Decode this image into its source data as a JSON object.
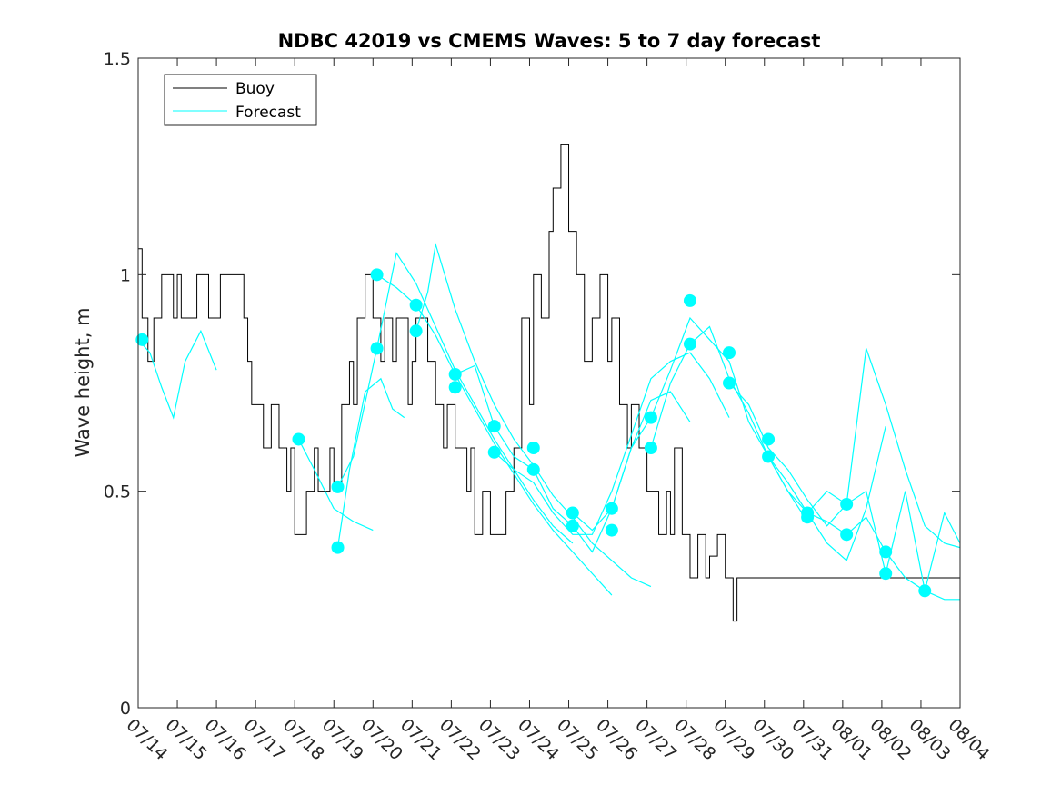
{
  "chart_data": {
    "type": "line",
    "title": "NDBC 42019 vs CMEMS Waves: 5 to 7 day forecast",
    "xlabel": "",
    "ylabel": "Wave height, m",
    "ylim": [
      0,
      1.5
    ],
    "yticks": [
      0,
      0.5,
      1,
      1.5
    ],
    "ytick_labels": [
      "0",
      "0.5",
      "1",
      "1.5"
    ],
    "xlim": [
      0,
      21
    ],
    "xticks": [
      0,
      1,
      2,
      3,
      4,
      5,
      6,
      7,
      8,
      9,
      10,
      11,
      12,
      13,
      14,
      15,
      16,
      17,
      18,
      19,
      20,
      21
    ],
    "xtick_labels": [
      "07/14",
      "07/15",
      "07/16",
      "07/17",
      "07/18",
      "07/19",
      "07/20",
      "07/21",
      "07/22",
      "07/23",
      "07/24",
      "07/25",
      "07/26",
      "07/27",
      "07/28",
      "07/29",
      "07/30",
      "07/31",
      "08/01",
      "08/02",
      "08/03",
      "08/04"
    ],
    "legend_position": "top-left",
    "colors": {
      "buoy": "#000000",
      "forecast": "#00ffff"
    },
    "series": [
      {
        "name": "Buoy",
        "style": "step",
        "x": [
          0.0,
          0.1,
          0.25,
          0.4,
          0.6,
          0.9,
          1.0,
          1.1,
          1.5,
          1.8,
          2.1,
          2.7,
          2.8,
          2.9,
          3.2,
          3.4,
          3.6,
          3.8,
          3.9,
          4.0,
          4.3,
          4.5,
          4.6,
          4.9,
          5.0,
          5.2,
          5.4,
          5.5,
          5.6,
          5.8,
          6.0,
          6.2,
          6.3,
          6.5,
          6.6,
          6.9,
          7.0,
          7.1,
          7.4,
          7.6,
          7.8,
          7.9,
          8.1,
          8.4,
          8.5,
          8.6,
          8.8,
          9.0,
          9.4,
          9.6,
          9.8,
          10.0,
          10.1,
          10.3,
          10.5,
          10.6,
          10.8,
          11.0,
          11.2,
          11.4,
          11.6,
          11.8,
          12.0,
          12.1,
          12.3,
          12.5,
          12.6,
          12.8,
          13.0,
          13.3,
          13.5,
          13.6,
          13.7,
          13.9,
          14.1,
          14.3,
          14.5,
          14.6,
          14.8,
          15.0,
          15.2,
          15.3,
          15.5,
          15.6,
          15.8,
          16.0,
          16.2,
          16.4,
          16.6,
          16.8,
          17.0,
          17.2,
          17.4,
          17.6,
          17.8,
          18.0,
          18.2,
          18.3,
          18.5,
          18.6,
          18.8,
          19.0,
          19.2,
          19.4,
          19.6,
          19.8,
          20.0,
          20.1,
          20.2,
          20.4,
          20.6,
          20.8,
          21.0
        ],
        "y": [
          1.06,
          0.9,
          0.8,
          0.9,
          1.0,
          0.9,
          1.0,
          0.9,
          1.0,
          0.9,
          1.0,
          0.9,
          0.8,
          0.7,
          0.6,
          0.7,
          0.6,
          0.5,
          0.6,
          0.4,
          0.5,
          0.6,
          0.5,
          0.6,
          0.5,
          0.7,
          0.8,
          0.7,
          0.9,
          1.0,
          0.9,
          0.8,
          0.9,
          0.8,
          0.9,
          0.7,
          0.8,
          0.9,
          0.8,
          0.7,
          0.6,
          0.7,
          0.6,
          0.5,
          0.6,
          0.4,
          0.5,
          0.4,
          0.5,
          0.6,
          0.9,
          0.7,
          1.0,
          0.9,
          1.1,
          1.2,
          1.3,
          1.1,
          1.0,
          0.8,
          0.9,
          1.0,
          0.8,
          0.9,
          0.7,
          0.6,
          0.7,
          0.6,
          0.5,
          0.4,
          0.5,
          0.4,
          0.6,
          0.4,
          0.3,
          0.4,
          0.3,
          0.35,
          0.4,
          0.3,
          0.2,
          0.3,
          0.3,
          0.3,
          0.3,
          0.3,
          0.3,
          0.3,
          0.3,
          0.3,
          0.3,
          0.3,
          0.3,
          0.3,
          0.3,
          0.3,
          0.3,
          0.3,
          0.3,
          0.3,
          0.3,
          0.3,
          0.3,
          0.3,
          0.3,
          0.3,
          0.3,
          0.3,
          0.3,
          0.3,
          0.3,
          0.3,
          0.3
        ]
      },
      {
        "name": "Forecast",
        "style": "line",
        "segments": [
          {
            "x": [
              0.0,
              0.3,
              0.6,
              0.9,
              1.2,
              1.6,
              2.0
            ],
            "y": [
              0.85,
              0.82,
              0.74,
              0.67,
              0.8,
              0.87,
              0.78
            ]
          },
          {
            "x": [
              4.1,
              4.5,
              5.0,
              5.5,
              6.0
            ],
            "y": [
              0.62,
              0.55,
              0.46,
              0.43,
              0.41
            ]
          },
          {
            "x": [
              5.1,
              5.4,
              5.8,
              6.2,
              6.5,
              6.8
            ],
            "y": [
              0.37,
              0.55,
              0.73,
              0.76,
              0.69,
              0.67
            ]
          },
          {
            "x": [
              5.1,
              5.5,
              6.1,
              6.6,
              7.1,
              7.6,
              8.1,
              8.6,
              9.1,
              9.6,
              10.1,
              10.6,
              11.1
            ],
            "y": [
              0.51,
              0.58,
              0.83,
              1.05,
              0.98,
              0.88,
              0.78,
              0.7,
              0.62,
              0.55,
              0.48,
              0.42,
              0.38
            ]
          },
          {
            "x": [
              6.1,
              6.6,
              7.1,
              7.6,
              8.1,
              8.6,
              9.1,
              9.6,
              10.1,
              10.6,
              11.1,
              11.6,
              12.1
            ],
            "y": [
              1.0,
              0.97,
              0.93,
              0.86,
              0.77,
              0.69,
              0.61,
              0.54,
              0.47,
              0.41,
              0.36,
              0.31,
              0.26
            ]
          },
          {
            "x": [
              7.1,
              7.4,
              7.6,
              8.1,
              8.6,
              9.1,
              9.6,
              10.1,
              10.6,
              11.1,
              11.6,
              12.1,
              12.6,
              13.1
            ],
            "y": [
              0.87,
              0.96,
              1.07,
              0.92,
              0.8,
              0.7,
              0.62,
              0.56,
              0.49,
              0.44,
              0.38,
              0.34,
              0.3,
              0.28
            ]
          },
          {
            "x": [
              8.1,
              8.6,
              9.1,
              9.6,
              10.1,
              10.6,
              11.1,
              11.6,
              12.1,
              12.6,
              13.1,
              13.6,
              14.1
            ],
            "y": [
              0.77,
              0.79,
              0.65,
              0.58,
              0.55,
              0.46,
              0.42,
              0.36,
              0.46,
              0.6,
              0.71,
              0.73,
              0.66
            ]
          },
          {
            "x": [
              9.1,
              9.6,
              10.1,
              10.6,
              11.1,
              11.6,
              12.1,
              12.6,
              13.1,
              13.6,
              14.1,
              14.6,
              15.1
            ],
            "y": [
              0.59,
              0.55,
              0.52,
              0.45,
              0.4,
              0.4,
              0.5,
              0.63,
              0.76,
              0.8,
              0.82,
              0.76,
              0.67
            ]
          },
          {
            "x": [
              11.1,
              11.6,
              12.1,
              12.6,
              13.1,
              13.6,
              14.1,
              14.6,
              15.1,
              15.6,
              16.1,
              16.6,
              17.1
            ],
            "y": [
              0.45,
              0.41,
              0.46,
              0.6,
              0.67,
              0.78,
              0.9,
              0.85,
              0.8,
              0.66,
              0.58,
              0.5,
              0.43
            ]
          },
          {
            "x": [
              13.1,
              13.6,
              14.1,
              14.6,
              15.1,
              15.6,
              16.1,
              16.6,
              17.1,
              17.6,
              18.1,
              18.6,
              19.1
            ],
            "y": [
              0.6,
              0.75,
              0.84,
              0.88,
              0.76,
              0.68,
              0.58,
              0.52,
              0.45,
              0.38,
              0.34,
              0.46,
              0.65
            ]
          },
          {
            "x": [
              15.1,
              15.6,
              16.1,
              16.6,
              17.1,
              17.6,
              18.1,
              18.6,
              19.1,
              19.6,
              20.1,
              20.6,
              21.0
            ],
            "y": [
              0.75,
              0.7,
              0.6,
              0.55,
              0.48,
              0.42,
              0.47,
              0.83,
              0.7,
              0.55,
              0.42,
              0.38,
              0.37
            ]
          },
          {
            "x": [
              16.1,
              16.6,
              17.1,
              17.6,
              18.1,
              18.6,
              19.1,
              19.6,
              20.1,
              20.6,
              21.0
            ],
            "y": [
              0.58,
              0.5,
              0.45,
              0.43,
              0.4,
              0.44,
              0.36,
              0.3,
              0.27,
              0.25,
              0.25
            ]
          },
          {
            "x": [
              17.1,
              17.6,
              18.1,
              18.6,
              19.1,
              19.6,
              20.1,
              20.6,
              21.0
            ],
            "y": [
              0.45,
              0.5,
              0.47,
              0.5,
              0.31,
              0.5,
              0.27,
              0.45,
              0.38
            ]
          }
        ],
        "markers": [
          {
            "x": 0.1,
            "y": 0.85
          },
          {
            "x": 4.1,
            "y": 0.62
          },
          {
            "x": 5.1,
            "y": 0.51
          },
          {
            "x": 5.1,
            "y": 0.37
          },
          {
            "x": 6.1,
            "y": 1.0
          },
          {
            "x": 6.1,
            "y": 0.83
          },
          {
            "x": 7.1,
            "y": 0.93
          },
          {
            "x": 7.1,
            "y": 0.87
          },
          {
            "x": 8.1,
            "y": 0.77
          },
          {
            "x": 8.1,
            "y": 0.74
          },
          {
            "x": 9.1,
            "y": 0.65
          },
          {
            "x": 9.1,
            "y": 0.59
          },
          {
            "x": 10.1,
            "y": 0.6
          },
          {
            "x": 10.1,
            "y": 0.55
          },
          {
            "x": 11.1,
            "y": 0.45
          },
          {
            "x": 11.1,
            "y": 0.42
          },
          {
            "x": 12.1,
            "y": 0.46
          },
          {
            "x": 12.1,
            "y": 0.41
          },
          {
            "x": 13.1,
            "y": 0.67
          },
          {
            "x": 13.1,
            "y": 0.6
          },
          {
            "x": 14.1,
            "y": 0.94
          },
          {
            "x": 14.1,
            "y": 0.84
          },
          {
            "x": 15.1,
            "y": 0.82
          },
          {
            "x": 15.1,
            "y": 0.75
          },
          {
            "x": 16.1,
            "y": 0.62
          },
          {
            "x": 16.1,
            "y": 0.58
          },
          {
            "x": 17.1,
            "y": 0.45
          },
          {
            "x": 17.1,
            "y": 0.44
          },
          {
            "x": 18.1,
            "y": 0.47
          },
          {
            "x": 18.1,
            "y": 0.4
          },
          {
            "x": 19.1,
            "y": 0.36
          },
          {
            "x": 19.1,
            "y": 0.31
          },
          {
            "x": 20.1,
            "y": 0.27
          }
        ]
      }
    ],
    "legend": [
      {
        "label": "Buoy",
        "color": "#000000"
      },
      {
        "label": "Forecast",
        "color": "#00ffff"
      }
    ]
  }
}
